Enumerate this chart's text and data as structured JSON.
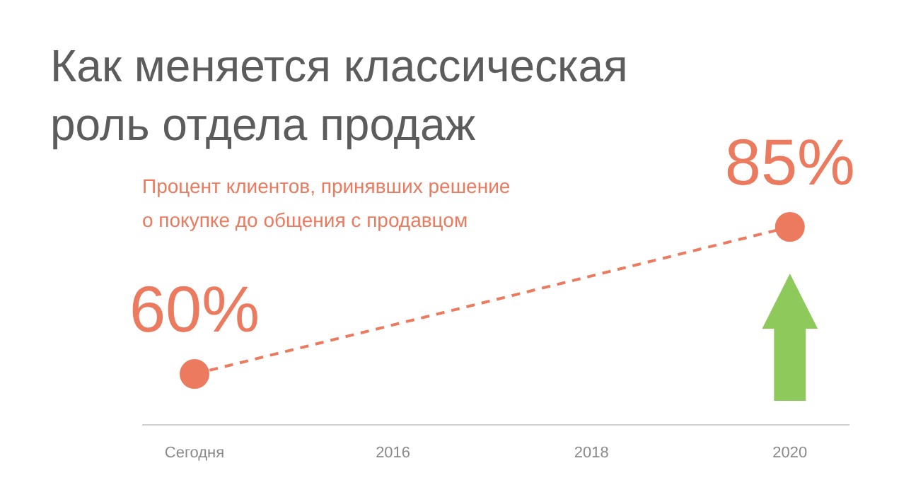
{
  "chart_data": {
    "type": "line",
    "title": "Как меняется классическая\nроль отдела продаж",
    "subtitle": "Процент клиентов, принявших решение\nо покупке до общения с продавцом",
    "categories": [
      "Сегодня",
      "2016",
      "2018",
      "2020"
    ],
    "series": [
      {
        "color": "#eb7a5e",
        "values": [
          60,
          null,
          null,
          85
        ],
        "value_labels": [
          "60%",
          null,
          null,
          "85%"
        ]
      }
    ],
    "marker": "circle",
    "line_style": "dashed"
  }
}
